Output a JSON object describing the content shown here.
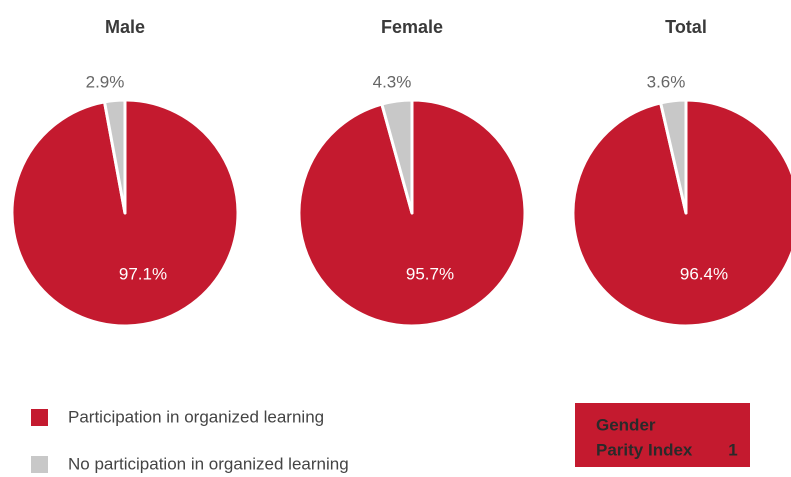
{
  "chart_data": [
    {
      "type": "pie",
      "title": "Male",
      "categories": [
        "Participation in organized learning",
        "No participation in organized learning"
      ],
      "values": [
        97.1,
        2.9
      ],
      "value_labels": [
        "97.1%",
        "2.9%"
      ],
      "colors": [
        "#c41a2f",
        "#c8c8c8"
      ]
    },
    {
      "type": "pie",
      "title": "Female",
      "categories": [
        "Participation in organized learning",
        "No participation in organized learning"
      ],
      "values": [
        95.7,
        4.3
      ],
      "value_labels": [
        "95.7%",
        "4.3%"
      ],
      "colors": [
        "#c41a2f",
        "#c8c8c8"
      ]
    },
    {
      "type": "pie",
      "title": "Total",
      "categories": [
        "Participation in organized learning",
        "No participation in organized learning"
      ],
      "values": [
        96.4,
        3.6
      ],
      "value_labels": [
        "96.4%",
        "3.6%"
      ],
      "colors": [
        "#c41a2f",
        "#c8c8c8"
      ]
    }
  ],
  "gender_parity_index": {
    "label_lines": [
      "Gender",
      "Parity Index"
    ],
    "value": 1
  }
}
